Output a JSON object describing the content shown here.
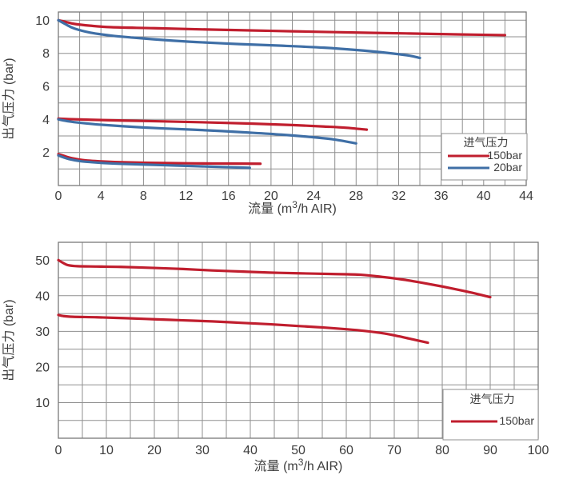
{
  "colors": {
    "background": "#ffffff",
    "series_red": "#c01e2e",
    "series_blue": "#3f6fa6",
    "grid": "#8f8f8f",
    "frame": "#787878",
    "text": "#3d3d3d",
    "legend_border": "#8f8f8f",
    "legend_bg": "#ffffff"
  },
  "chart_data": [
    {
      "type": "line",
      "title": "",
      "xlabel": "流量 (m³/h AIR)",
      "xlabel_parts": [
        "流量 (m",
        "3",
        "/h AIR)"
      ],
      "ylabel": "出气压力 (bar)",
      "xlim": [
        0,
        44
      ],
      "ylim": [
        0,
        10.5
      ],
      "grid": true,
      "x_grid_step": 2,
      "y_grid_step": 1,
      "x_tick_values": [
        0,
        4,
        8,
        12,
        16,
        20,
        24,
        28,
        32,
        36,
        40,
        44
      ],
      "y_tick_values": [
        2,
        4,
        6,
        8,
        10
      ],
      "legend": {
        "title": "进气压力",
        "position": "bottom-right",
        "entries": [
          {
            "label": "150bar",
            "color": "#c01e2e"
          },
          {
            "label": "20bar",
            "color": "#3f6fa6"
          }
        ]
      },
      "series": [
        {
          "name": "150bar",
          "color": "#c01e2e",
          "points": [
            [
              0,
              10
            ],
            [
              0.7,
              9.9
            ],
            [
              1.5,
              9.78
            ],
            [
              3,
              9.67
            ],
            [
              5,
              9.58
            ],
            [
              9,
              9.52
            ],
            [
              14,
              9.44
            ],
            [
              20,
              9.36
            ],
            [
              26,
              9.28
            ],
            [
              33,
              9.2
            ],
            [
              38,
              9.14
            ],
            [
              42,
              9.1
            ]
          ]
        },
        {
          "name": "150bar",
          "color": "#c01e2e",
          "points": [
            [
              0,
              4.05
            ],
            [
              1,
              4.02
            ],
            [
              3,
              3.98
            ],
            [
              6,
              3.93
            ],
            [
              10,
              3.88
            ],
            [
              14,
              3.82
            ],
            [
              18,
              3.75
            ],
            [
              22,
              3.66
            ],
            [
              25,
              3.57
            ],
            [
              27,
              3.5
            ],
            [
              29,
              3.38
            ]
          ]
        },
        {
          "name": "150bar",
          "color": "#c01e2e",
          "points": [
            [
              0,
              1.9
            ],
            [
              0.5,
              1.8
            ],
            [
              1,
              1.7
            ],
            [
              2,
              1.57
            ],
            [
              3,
              1.5
            ],
            [
              4,
              1.46
            ],
            [
              6,
              1.41
            ],
            [
              8,
              1.38
            ],
            [
              10,
              1.36
            ],
            [
              13,
              1.34
            ],
            [
              16,
              1.33
            ],
            [
              19,
              1.32
            ]
          ]
        },
        {
          "name": "20bar",
          "color": "#3f6fa6",
          "points": [
            [
              0,
              10
            ],
            [
              0.7,
              9.75
            ],
            [
              1.5,
              9.5
            ],
            [
              3,
              9.25
            ],
            [
              5,
              9.07
            ],
            [
              7,
              8.95
            ],
            [
              10,
              8.8
            ],
            [
              13,
              8.68
            ],
            [
              17,
              8.56
            ],
            [
              21,
              8.46
            ],
            [
              25,
              8.34
            ],
            [
              28,
              8.2
            ],
            [
              31,
              8.02
            ],
            [
              33,
              7.86
            ],
            [
              34,
              7.72
            ]
          ]
        },
        {
          "name": "20bar",
          "color": "#3f6fa6",
          "points": [
            [
              0,
              4.0
            ],
            [
              1,
              3.88
            ],
            [
              2,
              3.8
            ],
            [
              4,
              3.68
            ],
            [
              7,
              3.55
            ],
            [
              10,
              3.45
            ],
            [
              14,
              3.34
            ],
            [
              18,
              3.2
            ],
            [
              21,
              3.08
            ],
            [
              24,
              2.92
            ],
            [
              26,
              2.78
            ],
            [
              28,
              2.55
            ]
          ]
        },
        {
          "name": "20bar",
          "color": "#3f6fa6",
          "points": [
            [
              0,
              1.82
            ],
            [
              0.5,
              1.7
            ],
            [
              1,
              1.6
            ],
            [
              2,
              1.48
            ],
            [
              3,
              1.42
            ],
            [
              4,
              1.37
            ],
            [
              6,
              1.31
            ],
            [
              8,
              1.27
            ],
            [
              10,
              1.23
            ],
            [
              12,
              1.19
            ],
            [
              14,
              1.15
            ],
            [
              16,
              1.11
            ],
            [
              18,
              1.07
            ]
          ]
        }
      ]
    },
    {
      "type": "line",
      "title": "",
      "xlabel": "流量 (m³/h AIR)",
      "xlabel_parts": [
        "流量 (m",
        "3",
        "/h AIR)"
      ],
      "ylabel": "出气压力 (bar)",
      "xlim": [
        0,
        100
      ],
      "ylim": [
        0,
        55
      ],
      "grid": true,
      "x_grid_step": 5,
      "y_grid_step": 5,
      "x_tick_values": [
        0,
        10,
        20,
        30,
        40,
        50,
        60,
        70,
        80,
        90,
        100
      ],
      "y_tick_values": [
        10,
        20,
        30,
        40,
        50
      ],
      "legend": {
        "title": "进气压力",
        "position": "bottom-right",
        "entries": [
          {
            "label": "150bar",
            "color": "#c01e2e"
          }
        ]
      },
      "series": [
        {
          "name": "150bar",
          "color": "#c01e2e",
          "points": [
            [
              0,
              50
            ],
            [
              1,
              49.2
            ],
            [
              2,
              48.6
            ],
            [
              4,
              48.3
            ],
            [
              8,
              48.2
            ],
            [
              13,
              48.1
            ],
            [
              20,
              47.8
            ],
            [
              26,
              47.5
            ],
            [
              32,
              47.1
            ],
            [
              38,
              46.8
            ],
            [
              44,
              46.5
            ],
            [
              50,
              46.3
            ],
            [
              57,
              46.1
            ],
            [
              63,
              45.9
            ],
            [
              68,
              45.2
            ],
            [
              72,
              44.5
            ],
            [
              76,
              43.6
            ],
            [
              80,
              42.6
            ],
            [
              84,
              41.5
            ],
            [
              87,
              40.6
            ],
            [
              90,
              39.6
            ]
          ]
        },
        {
          "name": "150bar",
          "color": "#c01e2e",
          "points": [
            [
              0,
              34.6
            ],
            [
              1,
              34.3
            ],
            [
              3,
              34.1
            ],
            [
              8,
              33.95
            ],
            [
              14,
              33.7
            ],
            [
              20,
              33.4
            ],
            [
              26,
              33.1
            ],
            [
              32,
              32.8
            ],
            [
              38,
              32.4
            ],
            [
              44,
              32.0
            ],
            [
              50,
              31.5
            ],
            [
              55,
              31.1
            ],
            [
              60,
              30.6
            ],
            [
              64,
              30.1
            ],
            [
              68,
              29.4
            ],
            [
              71,
              28.6
            ],
            [
              74,
              27.7
            ],
            [
              77,
              26.8
            ]
          ]
        }
      ]
    }
  ]
}
